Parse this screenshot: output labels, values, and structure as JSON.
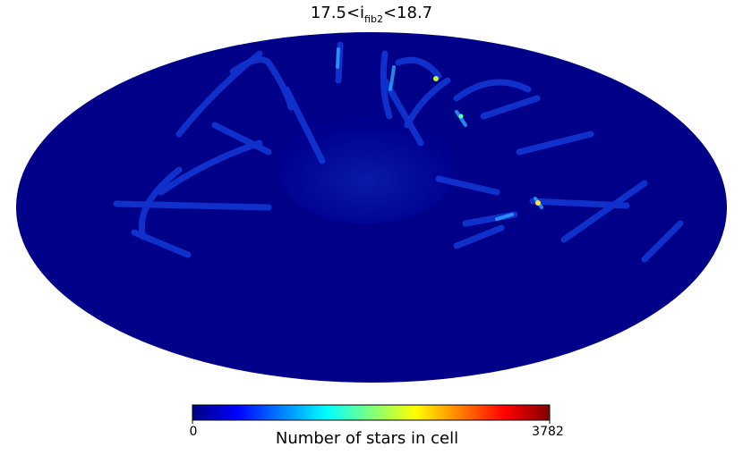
{
  "title": {
    "main": "17.5<i",
    "subscript": "fib2",
    "suffix": "<18.7"
  },
  "colorbar": {
    "min": 0,
    "max": 3782,
    "label": "Number of stars in cell",
    "colormap": "jet"
  }
}
